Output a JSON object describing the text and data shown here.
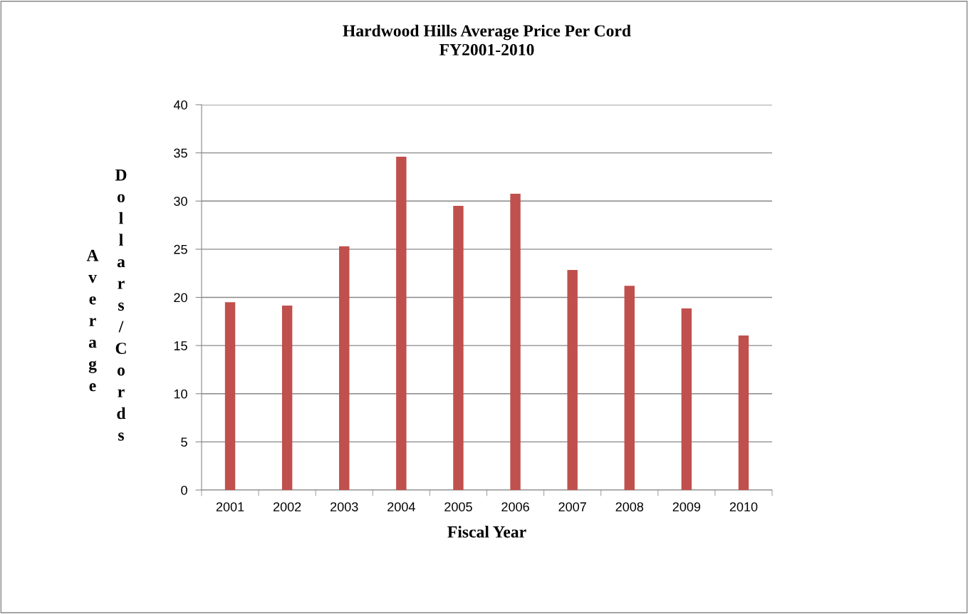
{
  "chart_data": {
    "type": "bar",
    "title": "Hardwood Hills Average Price Per Cord\nFY2001-2010",
    "xlabel": "Fiscal Year",
    "ylabel": "Average Dollars/Cords",
    "categories": [
      "2001",
      "2002",
      "2003",
      "2004",
      "2005",
      "2006",
      "2007",
      "2008",
      "2009",
      "2010"
    ],
    "values": [
      19.5,
      19.15,
      25.3,
      34.6,
      29.5,
      30.75,
      22.85,
      21.2,
      18.85,
      16.05
    ],
    "color": "#c0504d",
    "ylim": [
      0,
      40
    ],
    "yticks": [
      0,
      5,
      10,
      15,
      20,
      25,
      30,
      35,
      40
    ],
    "grid": "y",
    "legend": false
  }
}
